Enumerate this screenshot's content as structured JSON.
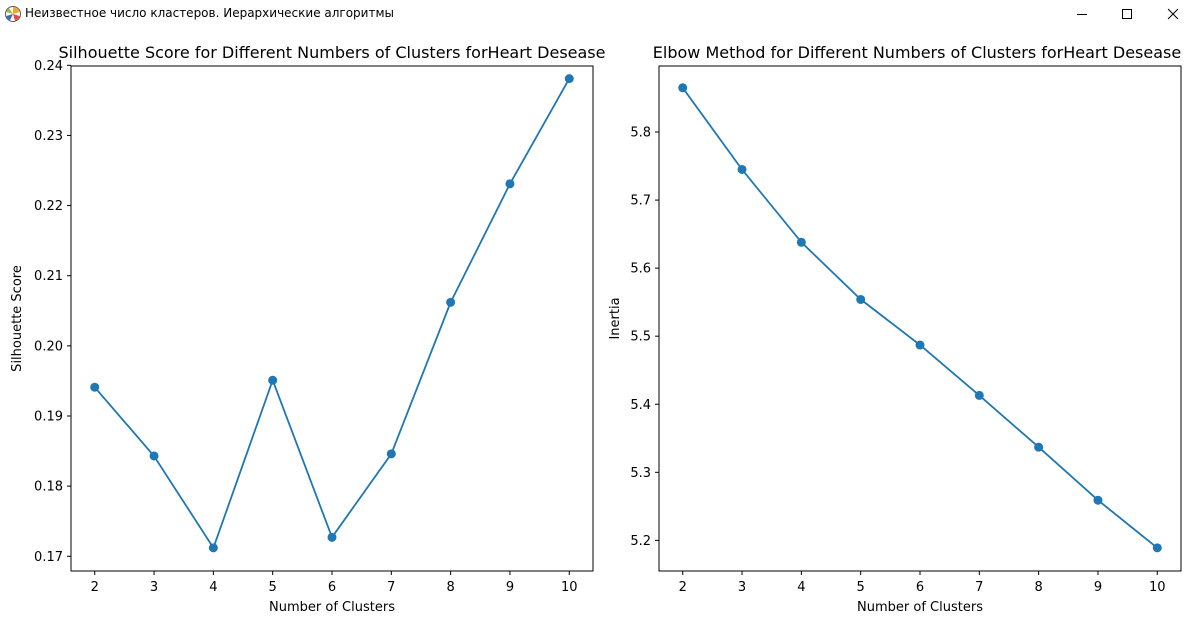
{
  "window": {
    "title": "Неизвестное число кластеров. Иерархические алгоритмы",
    "icon": "matplotlib-icon",
    "controls": [
      "minimize-icon",
      "maximize-icon",
      "close-icon"
    ]
  },
  "chart_data": [
    {
      "type": "line",
      "title": "Silhouette Score for Different Numbers of Clusters forHeart Desease",
      "xlabel": "Number of Clusters",
      "ylabel": "Silhouette Score",
      "x": [
        2,
        3,
        4,
        5,
        6,
        7,
        8,
        9,
        10
      ],
      "y": [
        0.1941,
        0.1843,
        0.1712,
        0.1951,
        0.1727,
        0.1846,
        0.2062,
        0.2231,
        0.2381
      ],
      "xlim": [
        1.6,
        10.4
      ],
      "ylim": [
        0.1679,
        0.2399
      ],
      "xticks": [
        "2",
        "3",
        "4",
        "5",
        "6",
        "7",
        "8",
        "9",
        "10"
      ],
      "yticks": [
        "0.17",
        "0.18",
        "0.19",
        "0.20",
        "0.21",
        "0.22",
        "0.23",
        "0.24"
      ],
      "ytick_values": [
        0.17,
        0.18,
        0.19,
        0.2,
        0.21,
        0.22,
        0.23,
        0.24
      ],
      "color": "#1f77b4",
      "marker": "circle",
      "grid": false
    },
    {
      "type": "line",
      "title": "Elbow Method for Different Numbers of Clusters forHeart Desease",
      "xlabel": "Number of Clusters",
      "ylabel": "Inertia",
      "x": [
        2,
        3,
        4,
        5,
        6,
        7,
        8,
        9,
        10
      ],
      "y": [
        5.865,
        5.745,
        5.638,
        5.554,
        5.487,
        5.413,
        5.337,
        5.259,
        5.189
      ],
      "xlim": [
        1.6,
        10.4
      ],
      "ylim": [
        5.155,
        5.897
      ],
      "xticks": [
        "2",
        "3",
        "4",
        "5",
        "6",
        "7",
        "8",
        "9",
        "10"
      ],
      "yticks": [
        "5.2",
        "5.3",
        "5.4",
        "5.5",
        "5.6",
        "5.7",
        "5.8"
      ],
      "ytick_values": [
        5.2,
        5.3,
        5.4,
        5.5,
        5.6,
        5.7,
        5.8
      ],
      "color": "#1f77b4",
      "marker": "circle",
      "grid": false
    }
  ]
}
